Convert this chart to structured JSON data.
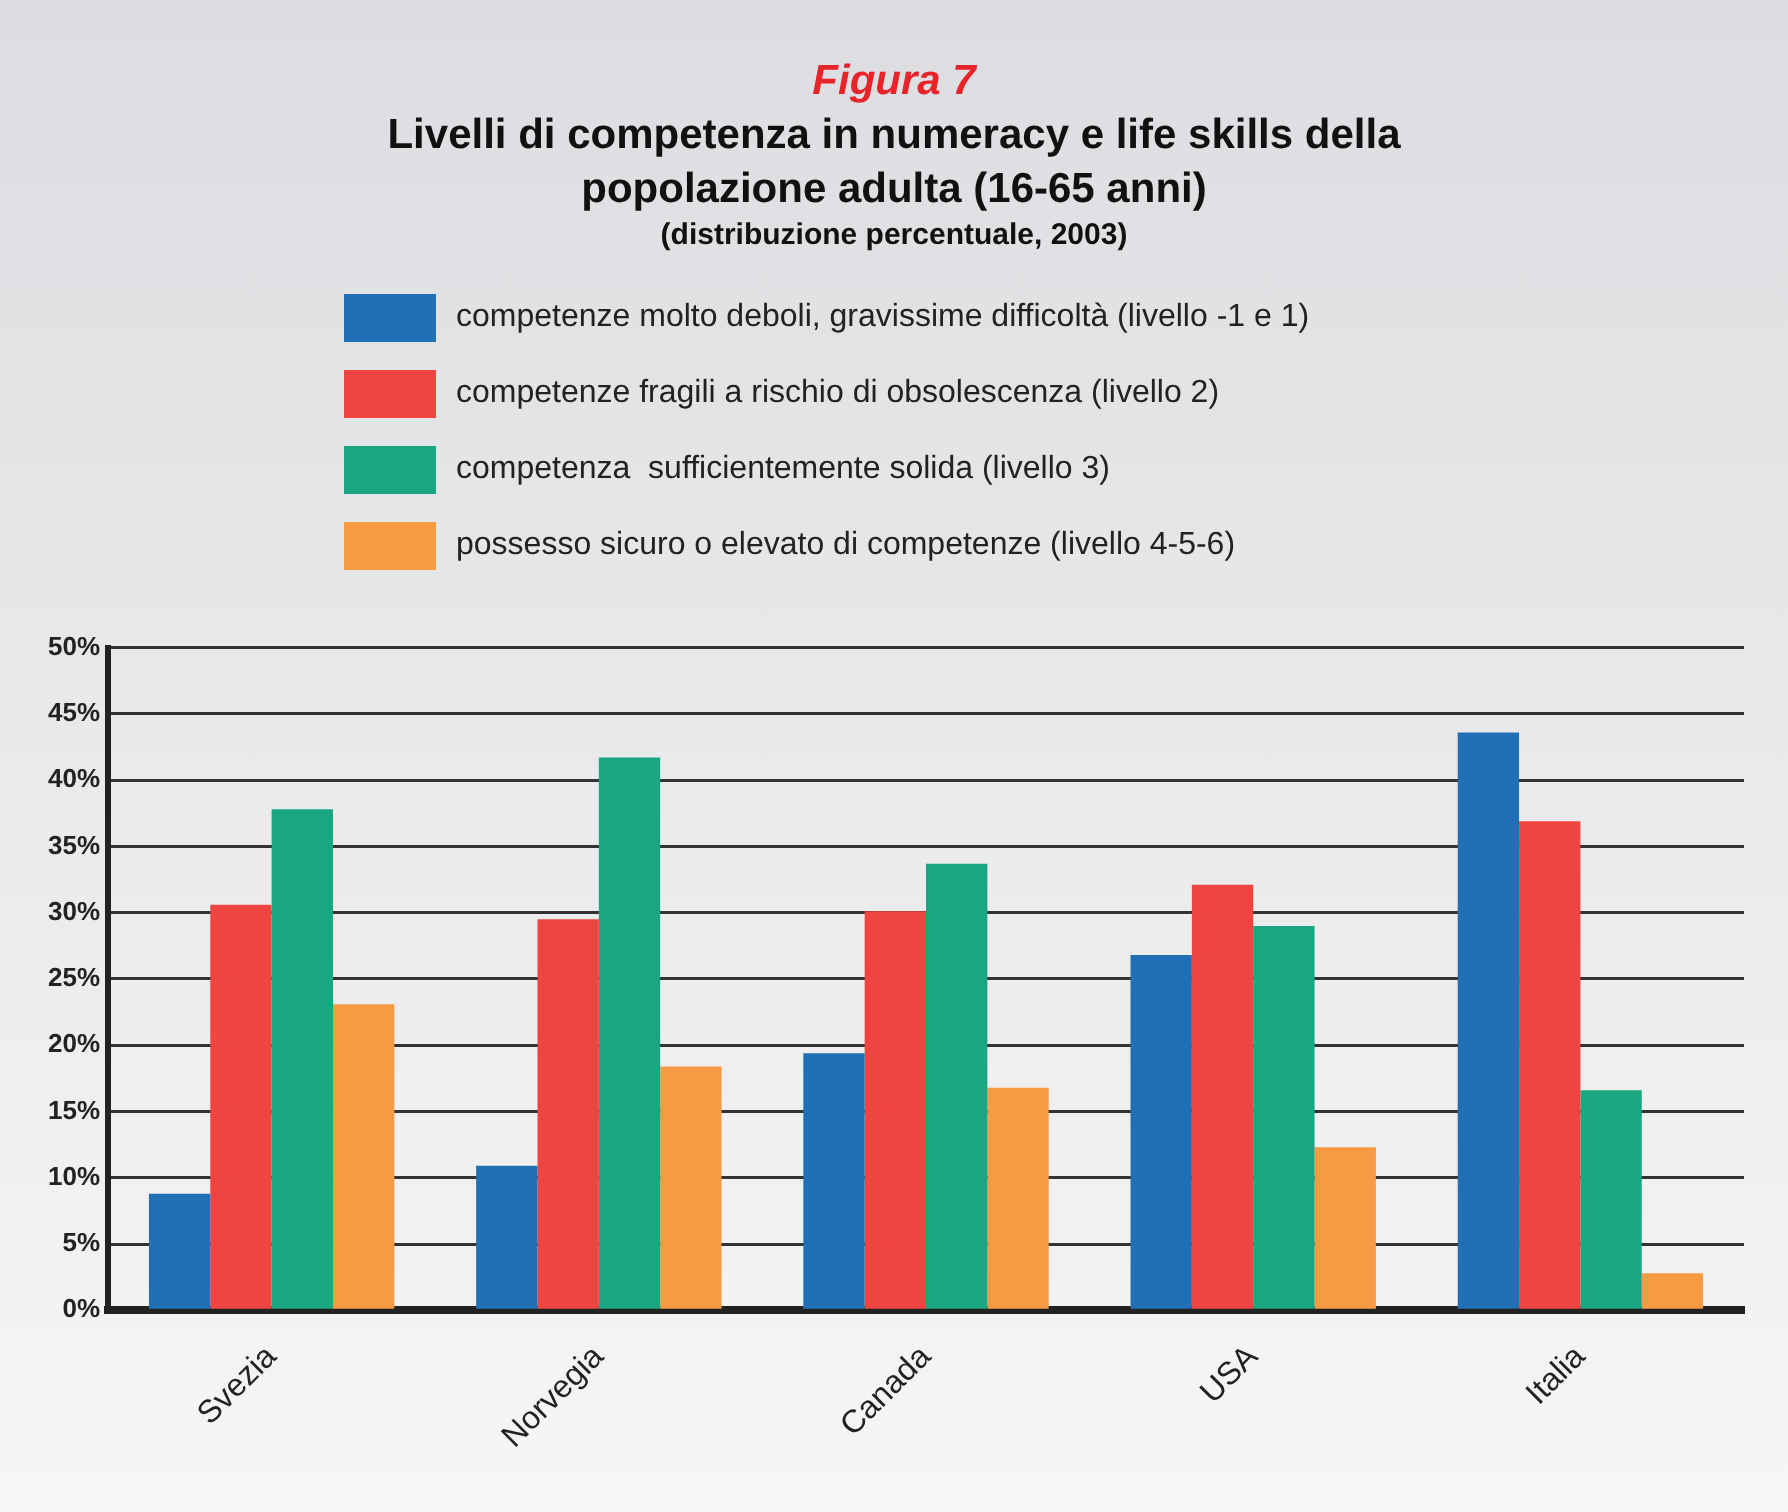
{
  "chart_data": {
    "type": "bar",
    "title": "Figura 7",
    "subtitle": "Livelli di competenza in numeracy e life skills della popolazione adulta (16-65 anni)",
    "annotations": [
      "(distribuzione percentuale, 2003)"
    ],
    "categories": [
      "Svezia",
      "Norvegia",
      "Canada",
      "USA",
      "Italia"
    ],
    "series": [
      {
        "name": "competenze molto deboli, gravissime difficoltà (livello -1 e 1)",
        "color": "#2170b5",
        "values": [
          8.8,
          10.9,
          19.4,
          26.8,
          43.6
        ]
      },
      {
        "name": "competenze fragili a rischio di obsolescenza (livello 2)",
        "color": "#ef4440",
        "values": [
          30.6,
          29.5,
          30.1,
          32.1,
          36.9
        ]
      },
      {
        "name": "competenza  sufficientemente solida (livello 3)",
        "color": "#19a680",
        "values": [
          37.8,
          41.7,
          33.7,
          29.0,
          16.6
        ]
      },
      {
        "name": "possesso sicuro o elevato di competenze (livello 4-5-6)",
        "color": "#f79a44",
        "values": [
          23.1,
          18.4,
          16.8,
          12.3,
          2.8
        ]
      }
    ],
    "ylim": [
      0,
      50
    ],
    "yticks": [
      {
        "value": 0,
        "label": "0%"
      },
      {
        "value": 5,
        "label": "5%"
      },
      {
        "value": 10,
        "label": "10%"
      },
      {
        "value": 15,
        "label": "15%"
      },
      {
        "value": 20,
        "label": "20%"
      },
      {
        "value": 25,
        "label": "25%"
      },
      {
        "value": 30,
        "label": "30%"
      },
      {
        "value": 35,
        "label": "35%"
      },
      {
        "value": 40,
        "label": "40%"
      },
      {
        "value": 45,
        "label": "45%"
      },
      {
        "value": 50,
        "label": "50%"
      }
    ],
    "grid": "y",
    "legend": "top"
  }
}
